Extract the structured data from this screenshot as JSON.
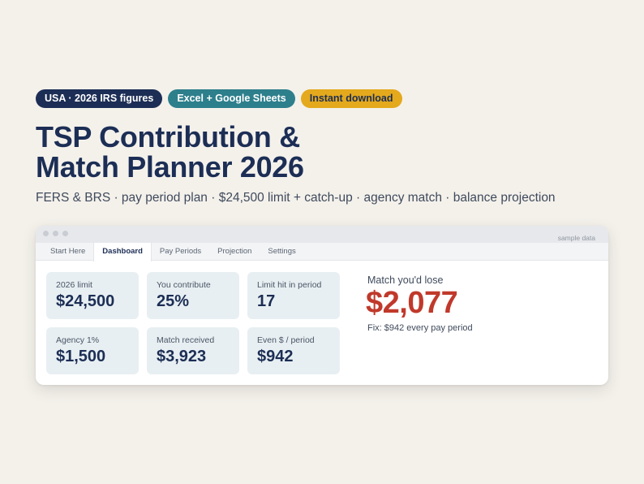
{
  "badges": [
    {
      "label": "USA · 2026 IRS figures",
      "color": "#1c2e55"
    },
    {
      "label": "Excel + Google Sheets",
      "color": "#2d7f8c"
    },
    {
      "label": "Instant download",
      "color": "#e4a91c"
    }
  ],
  "title_line1": "TSP Contribution &",
  "title_line2": "Match Planner 2026",
  "subtitle": "FERS & BRS · pay period plan · $24,500 limit + catch-up · agency match · balance projection",
  "window": {
    "sample_label": "sample data",
    "tabs": [
      "Start Here",
      "Dashboard",
      "Pay Periods",
      "Projection",
      "Settings"
    ],
    "active_tab": "Dashboard"
  },
  "cards": [
    {
      "label": "2026 limit",
      "value": "$24,500"
    },
    {
      "label": "You contribute",
      "value": "25%"
    },
    {
      "label": "Limit hit in period",
      "value": "17"
    },
    {
      "label": "Agency 1%",
      "value": "$1,500"
    },
    {
      "label": "Match received",
      "value": "$3,923"
    },
    {
      "label": "Even $ / period",
      "value": "$942"
    }
  ],
  "summary": {
    "lose_label": "Match you'd lose",
    "lose_value": "$2,077",
    "fix_text": "Fix: $942 every pay period",
    "accent_color": "#c0392b"
  }
}
